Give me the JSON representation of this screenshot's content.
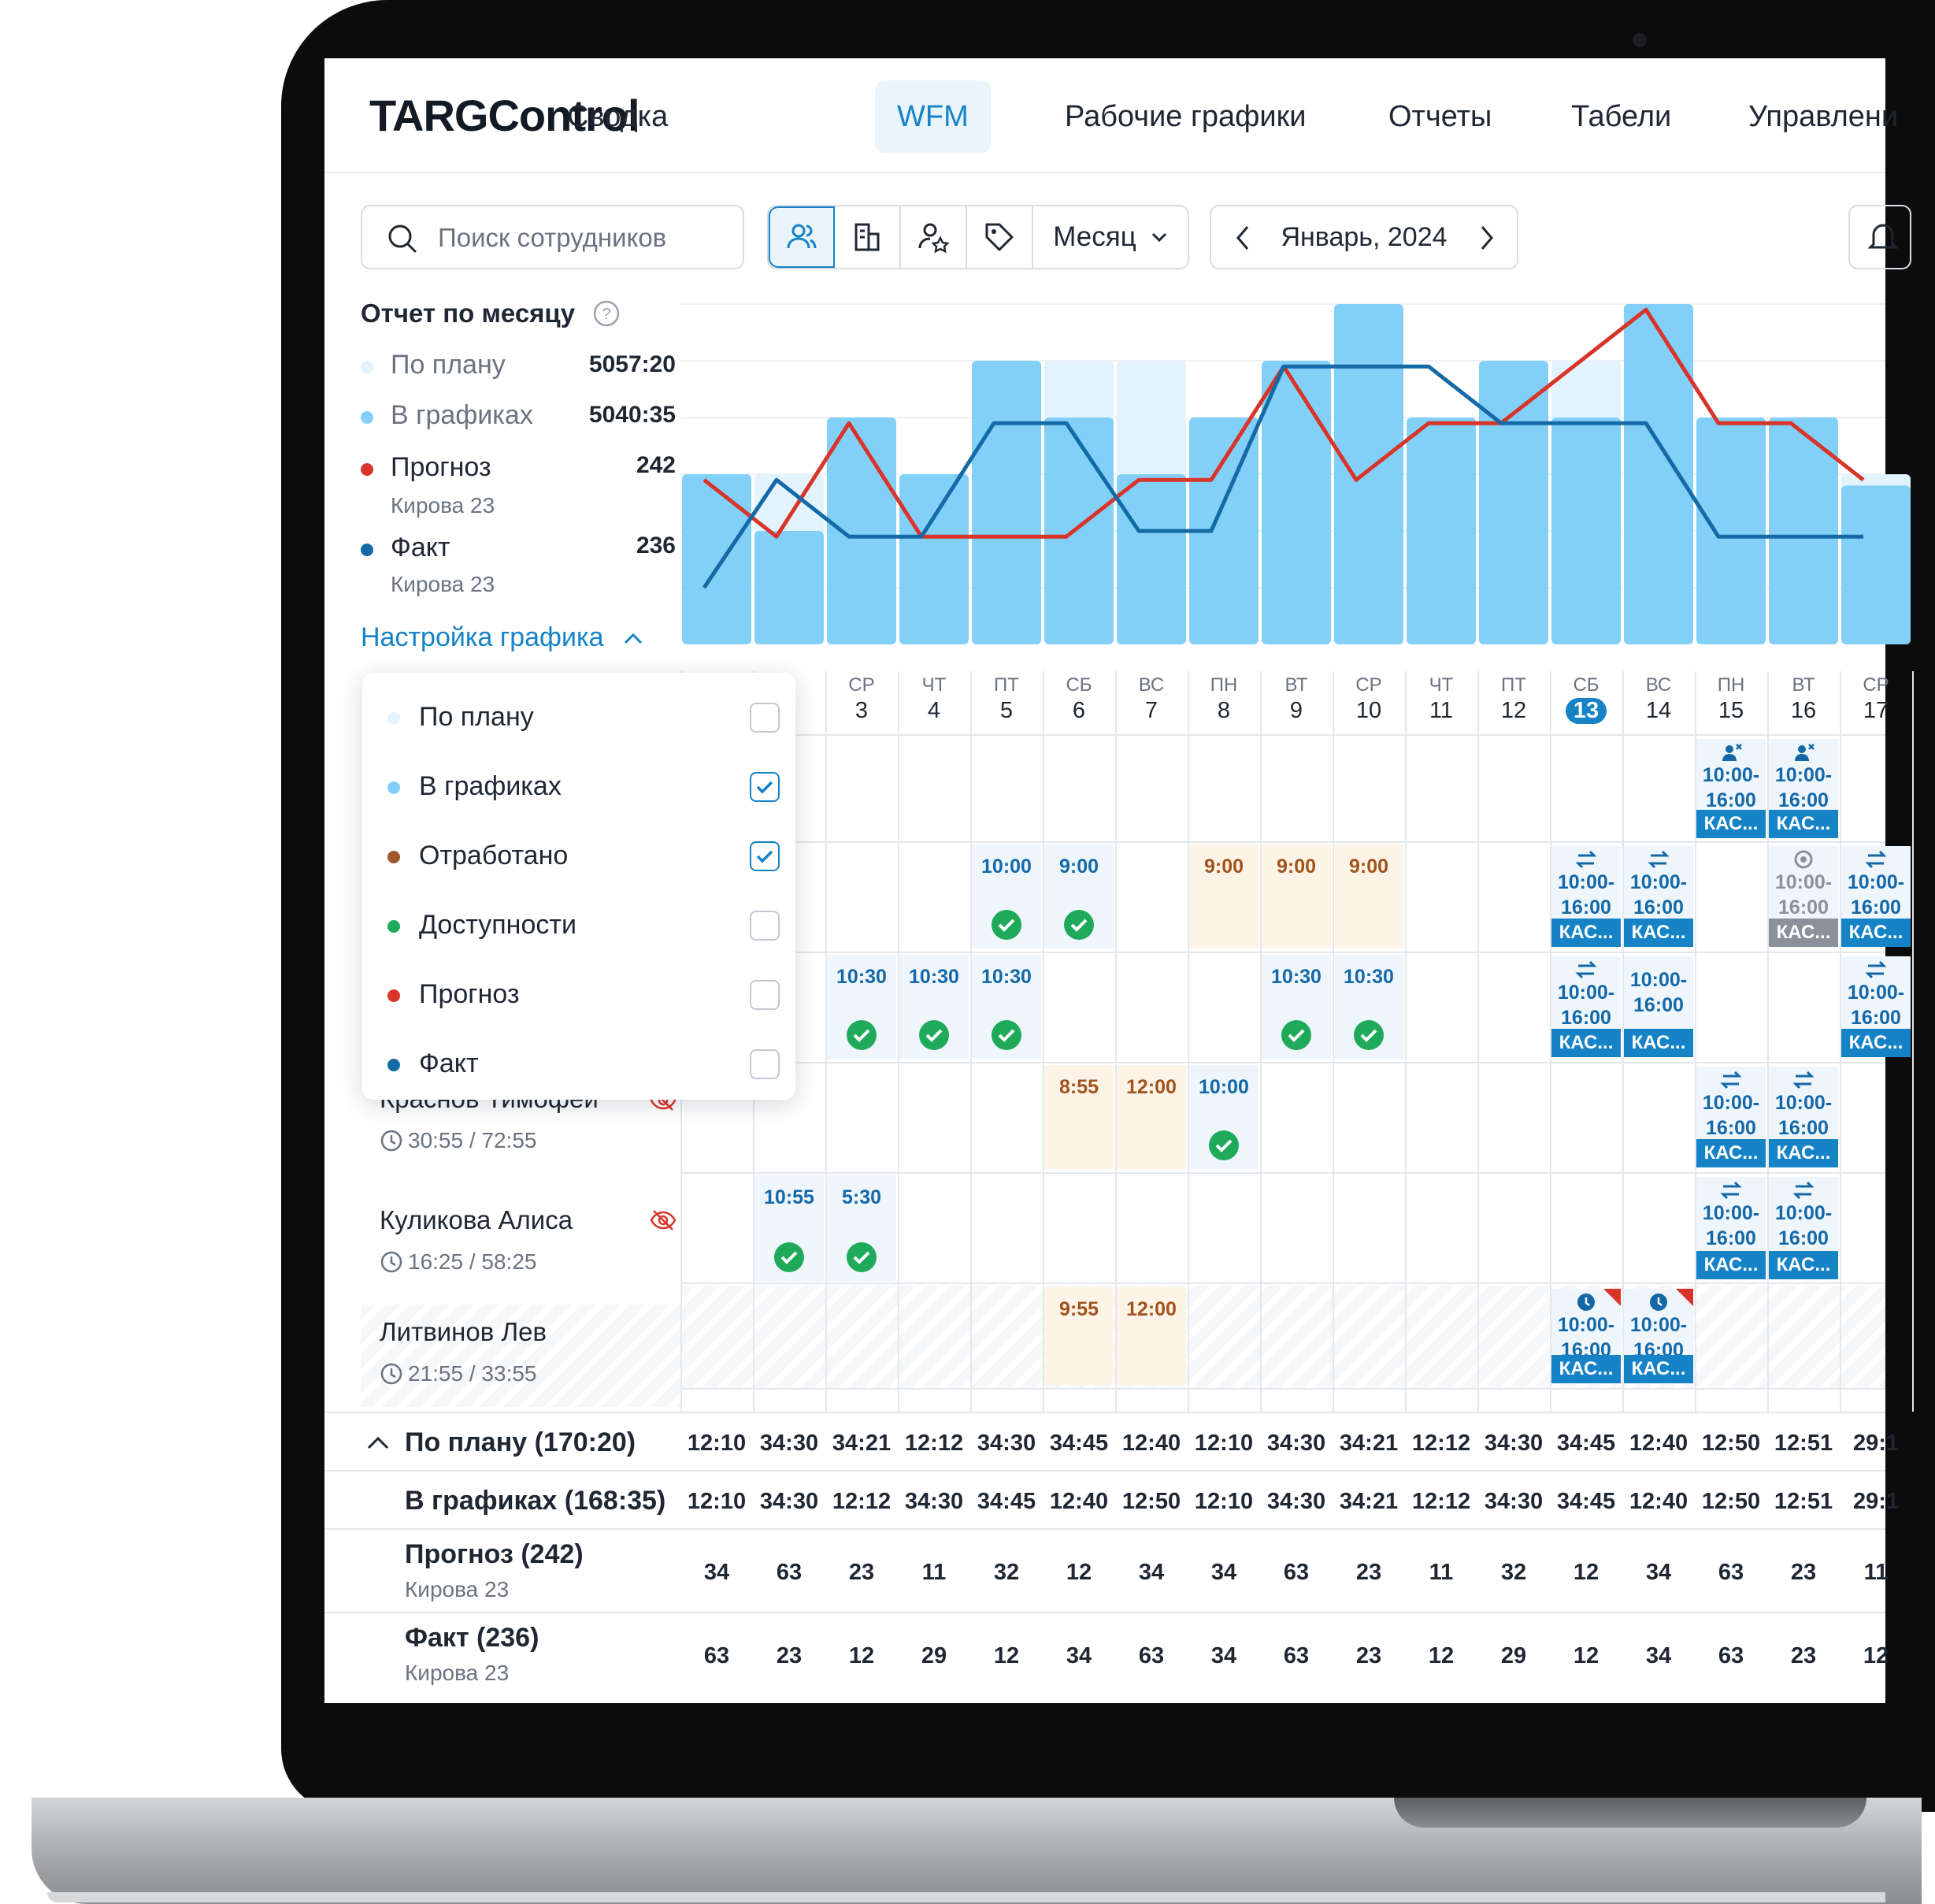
{
  "brand": "TARGControl",
  "nav": [
    {
      "label": "Сводка",
      "active": false
    },
    {
      "label": "WFM",
      "active": true
    },
    {
      "label": "Рабочие графики",
      "active": false
    },
    {
      "label": "Отчеты",
      "active": false
    },
    {
      "label": "Табели",
      "active": false
    },
    {
      "label": "Управлени",
      "active": false
    }
  ],
  "toolbar": {
    "search_placeholder": "Поиск сотрудников",
    "period_label": "Месяц",
    "month_label": "Январь, 2024"
  },
  "report": {
    "title": "Отчет по месяцу",
    "legend": [
      {
        "name": "По плану",
        "value": "5057:20",
        "color": "#e3f3fd"
      },
      {
        "name": "В графиках",
        "value": "5040:35",
        "color": "#82d0f7"
      },
      {
        "name": "Прогноз",
        "value": "242",
        "sub": "Кирова 23",
        "color": "#d8342a"
      },
      {
        "name": "Факт",
        "value": "236",
        "sub": "Кирова 23",
        "color": "#136aa6"
      }
    ],
    "settings_label": "Настройка графика"
  },
  "dropdown": [
    {
      "label": "По плану",
      "color": "#e3f3fd",
      "checked": false
    },
    {
      "label": "В графиках",
      "color": "#82d0f7",
      "checked": true
    },
    {
      "label": "Отработано",
      "color": "#a0582a",
      "checked": true
    },
    {
      "label": "Доступности",
      "color": "#1eaa5a",
      "checked": false
    },
    {
      "label": "Прогноз",
      "color": "#d8342a",
      "checked": false
    },
    {
      "label": "Факт",
      "color": "#136aa6",
      "checked": false
    }
  ],
  "days": [
    {
      "dw": "",
      "dn": ""
    },
    {
      "dw": "",
      "dn": ""
    },
    {
      "dw": "СР",
      "dn": "3"
    },
    {
      "dw": "ЧТ",
      "dn": "4"
    },
    {
      "dw": "ПТ",
      "dn": "5"
    },
    {
      "dw": "СБ",
      "dn": "6"
    },
    {
      "dw": "ВС",
      "dn": "7"
    },
    {
      "dw": "ПН",
      "dn": "8"
    },
    {
      "dw": "ВТ",
      "dn": "9"
    },
    {
      "dw": "СР",
      "dn": "10"
    },
    {
      "dw": "ЧТ",
      "dn": "11"
    },
    {
      "dw": "ПТ",
      "dn": "12"
    },
    {
      "dw": "СБ",
      "dn": "13",
      "today": true
    },
    {
      "dw": "ВС",
      "dn": "14"
    },
    {
      "dw": "ПН",
      "dn": "15"
    },
    {
      "dw": "ВТ",
      "dn": "16"
    },
    {
      "dw": "СР",
      "dn": "17"
    }
  ],
  "chart_data": {
    "type": "bar",
    "categories": [
      "1",
      "2",
      "3",
      "4",
      "5",
      "6",
      "7",
      "8",
      "9",
      "10",
      "11",
      "12",
      "13",
      "14",
      "15",
      "16",
      "17"
    ],
    "ylim": [
      0,
      6
    ],
    "series": [
      {
        "name": "По плану",
        "kind": "bar",
        "color": "#e3f3fd",
        "values": [
          3,
          3,
          4,
          3,
          5,
          5,
          5,
          4,
          5,
          6,
          4,
          5,
          5,
          6,
          4,
          4,
          3
        ]
      },
      {
        "name": "В графиках",
        "kind": "bar",
        "color": "#82d0f7",
        "values": [
          3,
          2,
          4,
          3,
          5,
          4,
          3,
          4,
          5,
          6,
          4,
          5,
          4,
          6,
          4,
          4,
          2.8
        ]
      },
      {
        "name": "Прогноз",
        "kind": "line",
        "color": "#d8342a",
        "values": [
          2.9,
          1.9,
          3.9,
          1.9,
          1.9,
          1.9,
          2.9,
          2.9,
          4.9,
          2.9,
          3.9,
          3.9,
          4.9,
          5.9,
          3.9,
          3.9,
          2.9
        ]
      },
      {
        "name": "Факт",
        "kind": "line",
        "color": "#136aa6",
        "values": [
          1.0,
          2.9,
          1.9,
          1.9,
          3.9,
          3.9,
          2.0,
          2.0,
          4.9,
          4.9,
          4.9,
          3.9,
          3.9,
          3.9,
          1.9,
          1.9,
          1.9
        ]
      }
    ]
  },
  "employees": [
    {
      "name": "Краснов Тимофей",
      "hours": "30:55 / 72:55"
    },
    {
      "name": "Куликова Алиса",
      "hours": "16:25 / 58:25"
    },
    {
      "name": "Литвинов Лев",
      "hours": "21:55 / 33:55"
    }
  ],
  "cells": {
    "r0": [],
    "r1": [
      {
        "col": 4,
        "text": "10:00",
        "kind": "plan",
        "check": true
      },
      {
        "col": 5,
        "text": "9:00",
        "kind": "plan",
        "check": true
      },
      {
        "col": 7,
        "text": "9:00",
        "kind": "work"
      },
      {
        "col": 8,
        "text": "9:00",
        "kind": "work"
      },
      {
        "col": 9,
        "text": "9:00",
        "kind": "work"
      }
    ],
    "r2": [
      {
        "col": 2,
        "text": "10:30",
        "kind": "plan",
        "check": true
      },
      {
        "col": 3,
        "text": "10:30",
        "kind": "plan",
        "check": true
      },
      {
        "col": 4,
        "text": "10:30",
        "kind": "plan",
        "check": true
      },
      {
        "col": 8,
        "text": "10:30",
        "kind": "plan",
        "check": true
      },
      {
        "col": 9,
        "text": "10:30",
        "kind": "plan",
        "check": true
      }
    ],
    "r3": [
      {
        "col": 5,
        "text": "8:55",
        "kind": "work"
      },
      {
        "col": 6,
        "text": "12:00",
        "kind": "work"
      },
      {
        "col": 7,
        "text": "10:00",
        "kind": "plan",
        "check": true
      }
    ],
    "r4": [
      {
        "col": 1,
        "text": "10:55",
        "kind": "plan",
        "check": true
      },
      {
        "col": 2,
        "text": "5:30",
        "kind": "plan",
        "check": true
      }
    ],
    "r5": [
      {
        "col": 5,
        "text": "9:55",
        "kind": "work"
      },
      {
        "col": 6,
        "text": "12:00",
        "kind": "work"
      }
    ]
  },
  "shift": {
    "l1": "10:00-",
    "l2": "16:00",
    "tag": "КАС..."
  },
  "shifts": [
    {
      "row": 0,
      "col": 14,
      "icon": "user-remove"
    },
    {
      "row": 0,
      "col": 15,
      "icon": "user-remove"
    },
    {
      "row": 1,
      "col": 12,
      "icon": "swap"
    },
    {
      "row": 1,
      "col": 13,
      "icon": "swap"
    },
    {
      "row": 1,
      "col": 15,
      "icon": "eye",
      "grey": true
    },
    {
      "row": 1,
      "col": 16,
      "icon": "swap"
    },
    {
      "row": 2,
      "col": 12,
      "icon": "swap"
    },
    {
      "row": 2,
      "col": 13,
      "icon": ""
    },
    {
      "row": 2,
      "col": 16,
      "icon": "swap"
    },
    {
      "row": 3,
      "col": 14,
      "icon": "swap"
    },
    {
      "row": 3,
      "col": 15,
      "icon": "swap"
    },
    {
      "row": 4,
      "col": 14,
      "icon": "swap"
    },
    {
      "row": 4,
      "col": 15,
      "icon": "swap"
    },
    {
      "row": 5,
      "col": 12,
      "icon": "clock"
    },
    {
      "row": 5,
      "col": 13,
      "icon": "clock"
    }
  ],
  "summary": [
    {
      "label": "По плану (170:20)",
      "values": [
        "12:10",
        "34:30",
        "34:21",
        "12:12",
        "34:30",
        "34:45",
        "12:40",
        "12:10",
        "34:30",
        "34:21",
        "12:12",
        "34:30",
        "34:45",
        "12:40",
        "12:50",
        "12:51",
        "29:1"
      ]
    },
    {
      "label": "В графиках (168:35)",
      "values": [
        "12:10",
        "34:30",
        "12:12",
        "34:30",
        "34:45",
        "12:40",
        "12:50",
        "12:10",
        "34:30",
        "34:21",
        "12:12",
        "34:30",
        "34:45",
        "12:40",
        "12:50",
        "12:51",
        "29:1"
      ]
    },
    {
      "label": "Прогноз (242)",
      "sub": "Кирова 23",
      "values": [
        "34",
        "63",
        "23",
        "11",
        "32",
        "12",
        "34",
        "34",
        "63",
        "23",
        "11",
        "32",
        "12",
        "34",
        "63",
        "23",
        "11"
      ]
    },
    {
      "label": "Факт (236)",
      "sub": "Кирова 23",
      "values": [
        "63",
        "23",
        "12",
        "29",
        "12",
        "34",
        "63",
        "34",
        "63",
        "23",
        "12",
        "29",
        "12",
        "34",
        "63",
        "23",
        "12"
      ]
    }
  ]
}
